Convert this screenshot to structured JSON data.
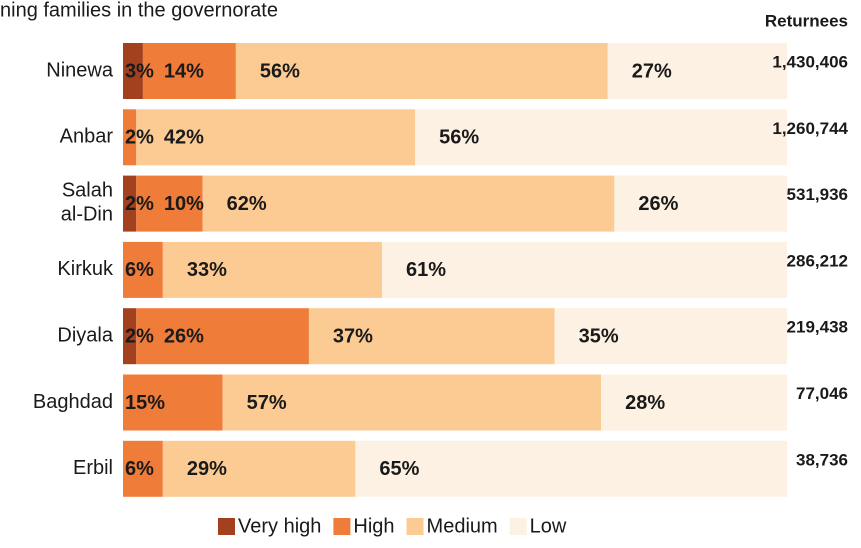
{
  "chart_data": {
    "type": "stacked-bar-horizontal",
    "title": "ning families in the governorate",
    "categories": [
      "Ninewa",
      "Anbar",
      "Salah al-Din",
      "Kirkuk",
      "Diyala",
      "Baghdad",
      "Erbil"
    ],
    "series": [
      {
        "name": "Very high",
        "color": "#a3401d",
        "values": [
          3,
          null,
          2,
          null,
          2,
          null,
          null
        ]
      },
      {
        "name": "High",
        "color": "#f07c3a",
        "values": [
          14,
          2,
          10,
          6,
          26,
          15,
          6
        ]
      },
      {
        "name": "Medium",
        "color": "#fccb94",
        "values": [
          56,
          42,
          62,
          33,
          37,
          57,
          29
        ]
      },
      {
        "name": "Low",
        "color": "#fdf1e3",
        "values": [
          27,
          56,
          26,
          61,
          35,
          28,
          65
        ]
      }
    ],
    "value_labels": [
      [
        "3%",
        null,
        "2%",
        null,
        "2%",
        null,
        null
      ],
      [
        "14%",
        "2%",
        "10%",
        "6%",
        "26%",
        "15%",
        "6%"
      ],
      [
        "56%",
        "42%",
        "62%",
        "33%",
        "37%",
        "57%",
        "29%"
      ],
      [
        "27%",
        "56%",
        "26%",
        "61%",
        "35%",
        "28%",
        "65%"
      ]
    ],
    "xlim": [
      0,
      100
    ],
    "returnees": {
      "name": "Returnees",
      "values": [
        1430406,
        1260744,
        531936,
        286212,
        219438,
        77046,
        38736
      ],
      "value_labels": [
        "1,430,406",
        "1,260,744",
        "531,936",
        "286,212",
        "219,438",
        "77,046",
        "38,736"
      ]
    },
    "legend": "bottom"
  }
}
